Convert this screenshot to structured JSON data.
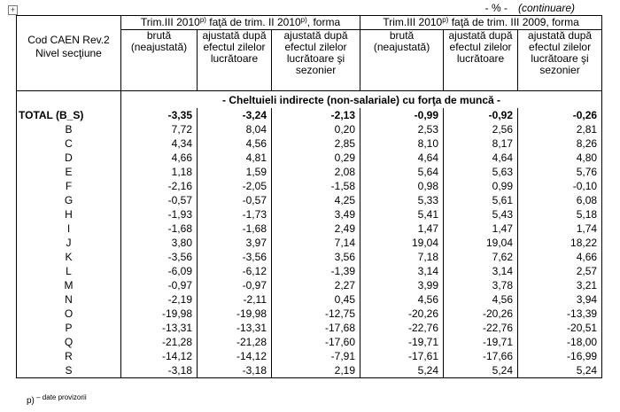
{
  "unit_note": "- % -",
  "continuation": "(continuare)",
  "header": {
    "first_col": "Cod CAEN Rev.2 Nivel secţiune",
    "groups": [
      [
        "Trim.III 2010",
        "p)",
        " faţă de trim. II 2010",
        "p)",
        ", forma"
      ],
      [
        "Trim.III 2010",
        "p)",
        " faţă de trim. III 2009, forma"
      ]
    ],
    "subheaders": [
      [
        "brută (neajustată)",
        "ajustată după efectul zilelor lucrătoare",
        "ajustată după efectul zilelor lucrătoare şi sezonier"
      ],
      [
        "brută (neajustată)",
        "ajustată după efectul zilelor lucrătoare",
        "ajustată după efectul zilelor lucrătoare şi sezonier"
      ]
    ]
  },
  "section": "- Cheltuieli indirecte (non-salariale) cu forţa de muncă -",
  "table": {
    "rows": [
      [
        "TOTAL (B_S)",
        "-3,35",
        "-3,24",
        "-2,13",
        "-0,99",
        "-0,92",
        "-0,26"
      ],
      [
        "B",
        "7,72",
        "8,04",
        "0,20",
        "2,53",
        "2,56",
        "2,81"
      ],
      [
        "C",
        "4,34",
        "4,56",
        "2,85",
        "8,10",
        "8,17",
        "8,26"
      ],
      [
        "D",
        "4,66",
        "4,81",
        "0,29",
        "4,64",
        "4,64",
        "4,80"
      ],
      [
        "E",
        "1,18",
        "1,59",
        "2,08",
        "5,64",
        "5,63",
        "5,76"
      ],
      [
        "F",
        "-2,16",
        "-2,05",
        "-1,58",
        "0,98",
        "0,99",
        "-0,10"
      ],
      [
        "G",
        "-0,57",
        "-0,57",
        "4,25",
        "5,33",
        "5,61",
        "6,08"
      ],
      [
        "H",
        "-1,93",
        "-1,73",
        "3,49",
        "5,41",
        "5,43",
        "5,18"
      ],
      [
        "I",
        "-1,68",
        "-1,68",
        "2,49",
        "1,47",
        "1,47",
        "1,74"
      ],
      [
        "J",
        "3,80",
        "3,97",
        "7,14",
        "19,04",
        "19,04",
        "18,22"
      ],
      [
        "K",
        "-3,56",
        "-3,56",
        "3,56",
        "7,18",
        "7,62",
        "4,66"
      ],
      [
        "L",
        "-6,09",
        "-6,12",
        "-1,39",
        "3,14",
        "3,14",
        "2,57"
      ],
      [
        "M",
        "-0,97",
        "-0,97",
        "2,27",
        "3,99",
        "3,78",
        "3,21"
      ],
      [
        "N",
        "-2,19",
        "-2,11",
        "0,45",
        "4,56",
        "4,56",
        "3,94"
      ],
      [
        "O",
        "-19,98",
        "-19,98",
        "-12,75",
        "-20,26",
        "-20,26",
        "-13,39"
      ],
      [
        "P",
        "-13,31",
        "-13,31",
        "-17,68",
        "-22,76",
        "-22,76",
        "-20,51"
      ],
      [
        "Q",
        "-21,28",
        "-21,28",
        "-17,60",
        "-19,71",
        "-19,71",
        "-18,00"
      ],
      [
        "R",
        "-14,12",
        "-14,12",
        "-7,91",
        "-17,61",
        "-17,66",
        "-16,99"
      ],
      [
        "S",
        "-3,18",
        "-3,18",
        "2,19",
        "5,24",
        "5,24",
        "5,24"
      ]
    ]
  },
  "footnote": [
    "p)",
    " – date provizorii"
  ]
}
